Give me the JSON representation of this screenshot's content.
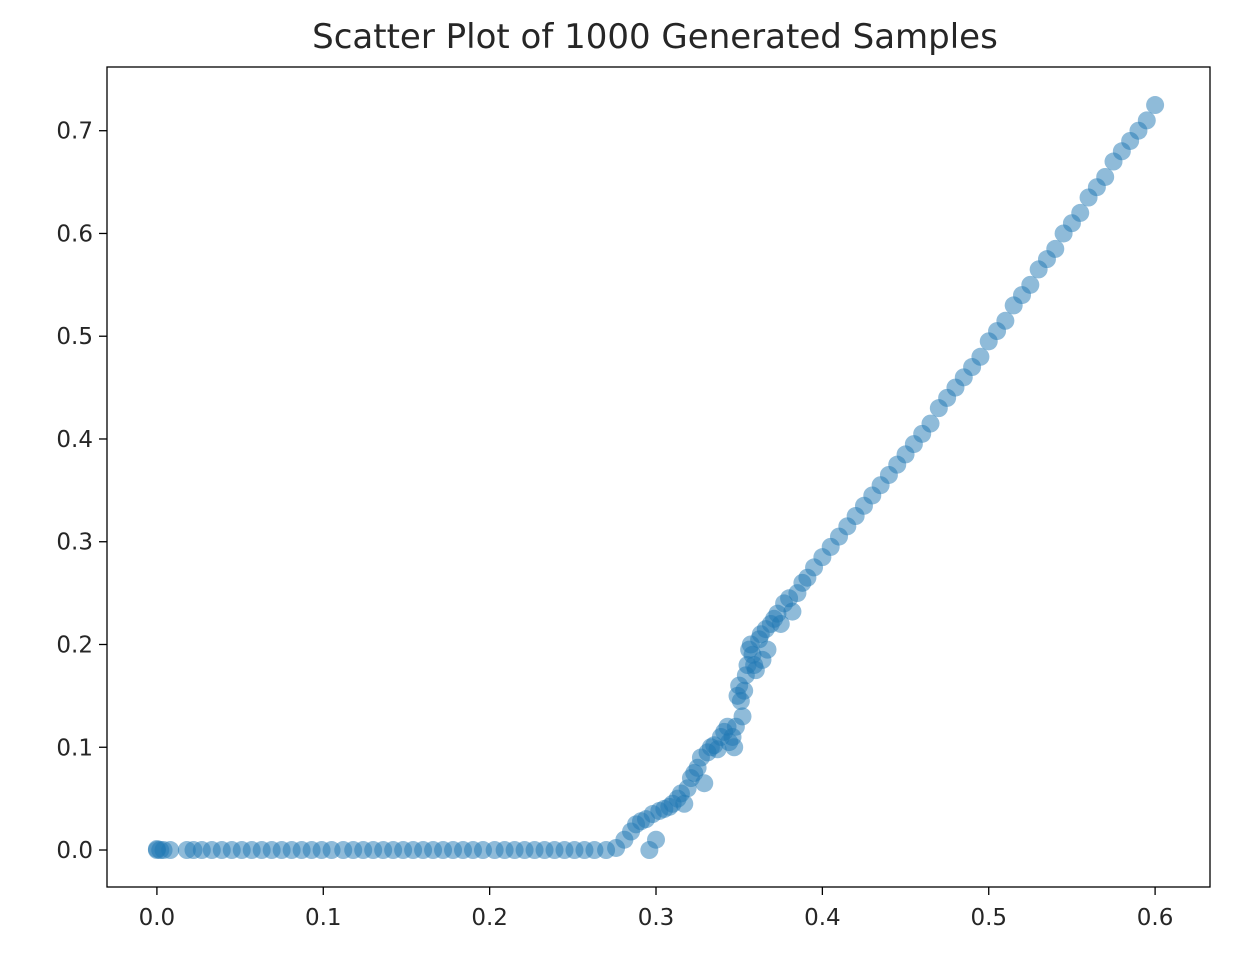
{
  "chart_data": {
    "type": "scatter",
    "title": "Scatter Plot of 1000 Generated Samples",
    "xlabel": "",
    "ylabel": "",
    "xlim": [
      -0.03,
      0.633
    ],
    "ylim": [
      -0.036,
      0.762
    ],
    "x_ticks": [
      0.0,
      0.1,
      0.2,
      0.3,
      0.4,
      0.5,
      0.6
    ],
    "x_tick_labels": [
      "0.0",
      "0.1",
      "0.2",
      "0.3",
      "0.4",
      "0.5",
      "0.6"
    ],
    "y_ticks": [
      0.0,
      0.1,
      0.2,
      0.3,
      0.4,
      0.5,
      0.6,
      0.7
    ],
    "y_tick_labels": [
      "0.0",
      "0.1",
      "0.2",
      "0.3",
      "0.4",
      "0.5",
      "0.6",
      "0.7"
    ],
    "grid": false,
    "legend": "none",
    "marker_color": "#1f77b4",
    "marker_alpha": 0.5,
    "n_points": 1000,
    "points": {
      "x": [
        0.0,
        0.0,
        0.002,
        0.004,
        0.008,
        0.018,
        0.022,
        0.027,
        0.033,
        0.039,
        0.045,
        0.051,
        0.057,
        0.063,
        0.069,
        0.075,
        0.081,
        0.087,
        0.093,
        0.099,
        0.105,
        0.112,
        0.118,
        0.124,
        0.13,
        0.136,
        0.142,
        0.148,
        0.154,
        0.16,
        0.166,
        0.172,
        0.178,
        0.184,
        0.19,
        0.196,
        0.203,
        0.209,
        0.215,
        0.221,
        0.227,
        0.233,
        0.239,
        0.245,
        0.251,
        0.257,
        0.263,
        0.27,
        0.276,
        0.281,
        0.285,
        0.288,
        0.291,
        0.294,
        0.296,
        0.298,
        0.3,
        0.302,
        0.305,
        0.308,
        0.31,
        0.313,
        0.315,
        0.317,
        0.319,
        0.321,
        0.323,
        0.325,
        0.327,
        0.329,
        0.331,
        0.333,
        0.335,
        0.337,
        0.339,
        0.341,
        0.343,
        0.344,
        0.346,
        0.347,
        0.348,
        0.349,
        0.35,
        0.351,
        0.352,
        0.353,
        0.354,
        0.355,
        0.356,
        0.357,
        0.358,
        0.359,
        0.36,
        0.362,
        0.363,
        0.364,
        0.366,
        0.367,
        0.369,
        0.371,
        0.373,
        0.375,
        0.377,
        0.38,
        0.382,
        0.385,
        0.388,
        0.391,
        0.395,
        0.4,
        0.405,
        0.41,
        0.415,
        0.42,
        0.425,
        0.43,
        0.435,
        0.44,
        0.445,
        0.45,
        0.455,
        0.46,
        0.465,
        0.47,
        0.475,
        0.48,
        0.485,
        0.49,
        0.495,
        0.5,
        0.505,
        0.51,
        0.515,
        0.52,
        0.525,
        0.53,
        0.535,
        0.54,
        0.545,
        0.55,
        0.555,
        0.56,
        0.565,
        0.57,
        0.575,
        0.58,
        0.585,
        0.59,
        0.595,
        0.6
      ],
      "y": [
        0.0,
        0.001,
        0.0,
        0.0,
        0.0,
        0.0,
        0.0,
        0.0,
        0.0,
        0.0,
        0.0,
        0.0,
        0.0,
        0.0,
        0.0,
        0.0,
        0.0,
        0.0,
        0.0,
        0.0,
        0.0,
        0.0,
        0.0,
        0.0,
        0.0,
        0.0,
        0.0,
        0.0,
        0.0,
        0.0,
        0.0,
        0.0,
        0.0,
        0.0,
        0.0,
        0.0,
        0.0,
        0.0,
        0.0,
        0.0,
        0.0,
        0.0,
        0.0,
        0.0,
        0.0,
        0.0,
        0.0,
        0.0,
        0.002,
        0.01,
        0.018,
        0.025,
        0.028,
        0.03,
        0.0,
        0.035,
        0.01,
        0.038,
        0.04,
        0.042,
        0.045,
        0.05,
        0.055,
        0.045,
        0.06,
        0.07,
        0.075,
        0.08,
        0.09,
        0.065,
        0.095,
        0.1,
        0.102,
        0.098,
        0.11,
        0.115,
        0.12,
        0.105,
        0.11,
        0.1,
        0.12,
        0.15,
        0.16,
        0.145,
        0.13,
        0.155,
        0.17,
        0.18,
        0.195,
        0.2,
        0.19,
        0.18,
        0.175,
        0.205,
        0.21,
        0.185,
        0.215,
        0.195,
        0.22,
        0.225,
        0.23,
        0.22,
        0.24,
        0.245,
        0.232,
        0.25,
        0.26,
        0.265,
        0.275,
        0.285,
        0.295,
        0.305,
        0.315,
        0.325,
        0.335,
        0.345,
        0.355,
        0.365,
        0.375,
        0.385,
        0.395,
        0.405,
        0.415,
        0.43,
        0.44,
        0.45,
        0.46,
        0.47,
        0.48,
        0.495,
        0.505,
        0.515,
        0.53,
        0.54,
        0.55,
        0.565,
        0.575,
        0.585,
        0.6,
        0.61,
        0.62,
        0.635,
        0.645,
        0.655,
        0.67,
        0.68,
        0.69,
        0.7,
        0.71,
        0.725
      ]
    }
  }
}
